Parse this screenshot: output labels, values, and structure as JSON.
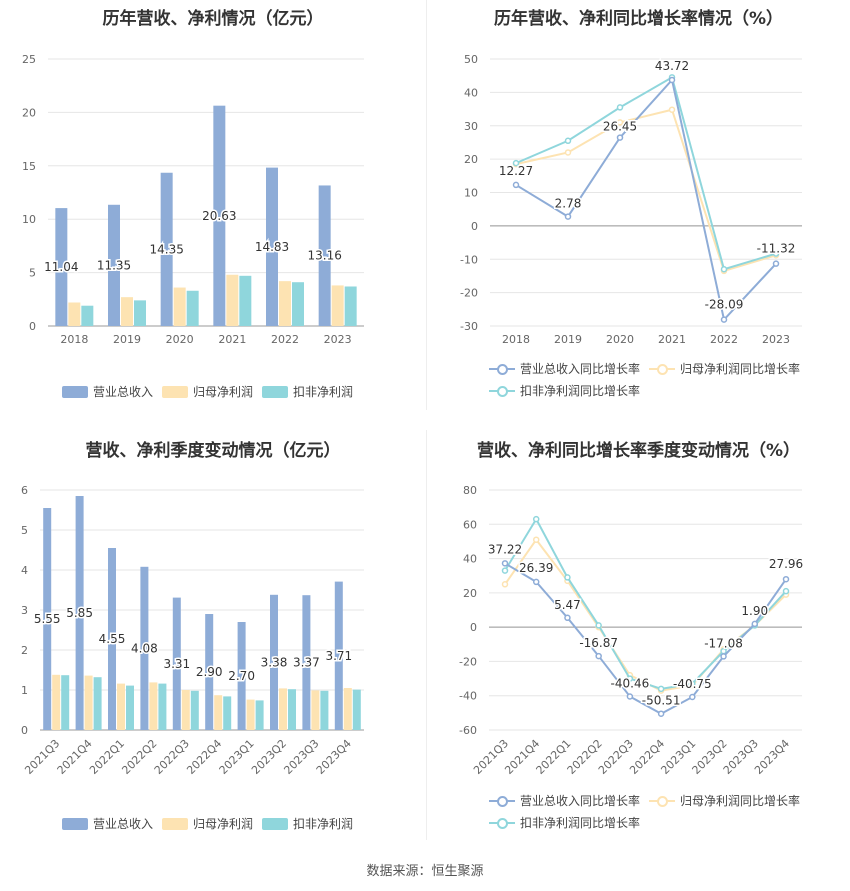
{
  "source": "数据来源：恒生聚源",
  "colors": {
    "revenue": "#8eacd7",
    "parent": "#fde3b2",
    "deducted": "#8fd6dc"
  },
  "chart_data": [
    {
      "id": "annual-bar",
      "type": "bar",
      "title": "历年营收、净利情况（亿元）",
      "categories": [
        "2018",
        "2019",
        "2020",
        "2021",
        "2022",
        "2023"
      ],
      "ylim": [
        0,
        25
      ],
      "yticks": [
        "0",
        "5",
        "10",
        "15",
        "20",
        "25"
      ],
      "grid": true,
      "legend_position": "bottom",
      "series": [
        {
          "name": "营业总收入",
          "values": [
            11.04,
            11.35,
            14.35,
            20.63,
            14.83,
            13.16
          ],
          "labels": [
            "11.04",
            "11.35",
            "14.35",
            "20.63",
            "14.83",
            "13.16"
          ]
        },
        {
          "name": "归母净利润",
          "values": [
            2.2,
            2.7,
            3.6,
            4.8,
            4.2,
            3.8
          ]
        },
        {
          "name": "扣非净利润",
          "values": [
            1.9,
            2.4,
            3.3,
            4.7,
            4.1,
            3.7
          ]
        }
      ]
    },
    {
      "id": "annual-line",
      "type": "line",
      "title": "历年营收、净利同比增长率情况（%）",
      "categories": [
        "2018",
        "2019",
        "2020",
        "2021",
        "2022",
        "2023"
      ],
      "ylim": [
        -30,
        50
      ],
      "yticks": [
        "-30",
        "-20",
        "-10",
        "0",
        "10",
        "20",
        "30",
        "40",
        "50"
      ],
      "grid": true,
      "legend_position": "bottom",
      "series": [
        {
          "name": "营业总收入同比增长率",
          "values": [
            12.27,
            2.78,
            26.45,
            43.72,
            -28.09,
            -11.32
          ],
          "labels": [
            "12.27",
            "2.78",
            "26.45",
            "43.72",
            "-28.09",
            "-11.32"
          ]
        },
        {
          "name": "归母净利润同比增长率",
          "values": [
            18.5,
            22.0,
            31.0,
            34.8,
            -13.5,
            -8.8
          ]
        },
        {
          "name": "扣非净利润同比增长率",
          "values": [
            18.8,
            25.5,
            35.5,
            44.5,
            -13.0,
            -8.3
          ]
        }
      ]
    },
    {
      "id": "quarter-bar",
      "type": "bar",
      "title": "营收、净利季度变动情况（亿元）",
      "categories": [
        "2021Q3",
        "2021Q4",
        "2022Q1",
        "2022Q2",
        "2022Q3",
        "2022Q4",
        "2023Q1",
        "2023Q2",
        "2023Q3",
        "2023Q4"
      ],
      "ylim": [
        0,
        6
      ],
      "yticks": [
        "0",
        "1",
        "2",
        "3",
        "4",
        "5",
        "6"
      ],
      "grid": true,
      "legend_position": "bottom",
      "series": [
        {
          "name": "营业总收入",
          "values": [
            5.55,
            5.85,
            4.55,
            4.08,
            3.31,
            2.9,
            2.7,
            3.38,
            3.37,
            3.71
          ],
          "labels": [
            "5.55",
            "5.85",
            "4.55",
            "4.08",
            "3.31",
            "2.90",
            "2.70",
            "3.38",
            "3.37",
            "3.71"
          ]
        },
        {
          "name": "归母净利润",
          "values": [
            1.38,
            1.36,
            1.16,
            1.19,
            1.0,
            0.87,
            0.76,
            1.04,
            0.99,
            1.05
          ]
        },
        {
          "name": "扣非净利润",
          "values": [
            1.37,
            1.32,
            1.11,
            1.16,
            0.98,
            0.84,
            0.74,
            1.02,
            0.98,
            1.01
          ]
        }
      ]
    },
    {
      "id": "quarter-line",
      "type": "line",
      "title": "营收、净利同比增长率季度变动情况（%）",
      "categories": [
        "2021Q3",
        "2021Q4",
        "2022Q1",
        "2022Q2",
        "2022Q3",
        "2022Q4",
        "2023Q1",
        "2023Q2",
        "2023Q3",
        "2023Q4"
      ],
      "ylim": [
        -60,
        80
      ],
      "yticks": [
        "-60",
        "-40",
        "-20",
        "0",
        "20",
        "40",
        "60",
        "80"
      ],
      "grid": true,
      "legend_position": "bottom",
      "series": [
        {
          "name": "营业总收入同比增长率",
          "values": [
            37.22,
            26.39,
            5.47,
            -16.87,
            -40.46,
            -50.51,
            -40.75,
            -17.08,
            1.9,
            27.96
          ],
          "labels": [
            "37.22",
            "26.39",
            "5.47",
            "-16.87",
            "-40.46",
            "-50.51",
            "-40.75",
            "-17.08",
            "1.90",
            "27.96"
          ]
        },
        {
          "name": "归母净利润同比增长率",
          "values": [
            25,
            51,
            27,
            0,
            -28,
            -37,
            -34,
            -13,
            1,
            19
          ]
        },
        {
          "name": "扣非净利润同比增长率",
          "values": [
            33,
            63,
            29,
            1,
            -30,
            -36,
            -33,
            -14,
            1,
            21
          ]
        }
      ]
    }
  ]
}
